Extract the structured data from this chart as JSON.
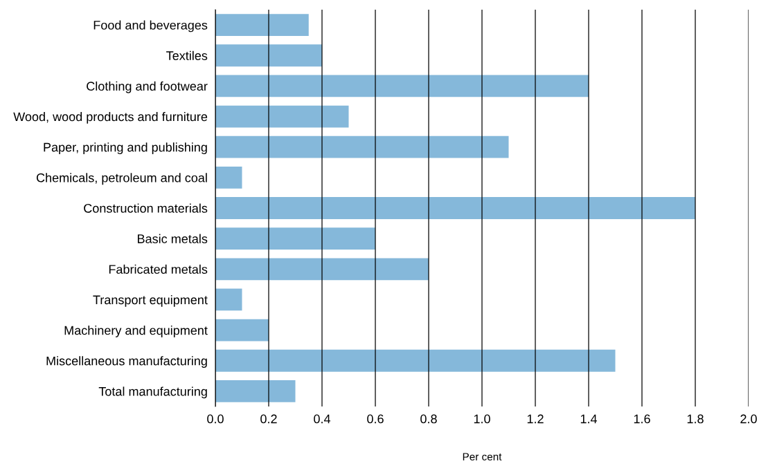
{
  "chart_data": {
    "type": "bar",
    "orientation": "horizontal",
    "xlabel": "Per cent",
    "categories": [
      "Food and beverages",
      "Textiles",
      "Clothing and footwear",
      "Wood, wood products and furniture",
      "Paper, printing and publishing",
      "Chemicals, petroleum and coal",
      "Construction materials",
      "Basic metals",
      "Fabricated metals",
      "Transport equipment",
      "Machinery and equipment",
      "Miscellaneous manufacturing",
      "Total manufacturing"
    ],
    "values": [
      0.35,
      0.4,
      1.4,
      0.5,
      1.1,
      0.1,
      1.8,
      0.6,
      0.8,
      0.1,
      0.2,
      1.5,
      0.3
    ],
    "color": "#85b8da",
    "xlim": [
      0,
      2.0
    ],
    "xticks": [
      {
        "value": 0,
        "label": "0.0"
      },
      {
        "value": 0.2,
        "label": "0.2"
      },
      {
        "value": 0.4,
        "label": "0.4"
      },
      {
        "value": 0.6,
        "label": "0.6"
      },
      {
        "value": 0.8,
        "label": "0.8"
      },
      {
        "value": 1.0,
        "label": "1.0"
      },
      {
        "value": 1.2,
        "label": "1.2"
      },
      {
        "value": 1.4,
        "label": "1.4"
      },
      {
        "value": 1.6,
        "label": "1.6"
      },
      {
        "value": 1.8,
        "label": "1.8"
      },
      {
        "value": 2.0,
        "label": "2.0"
      }
    ],
    "grid": "x"
  }
}
